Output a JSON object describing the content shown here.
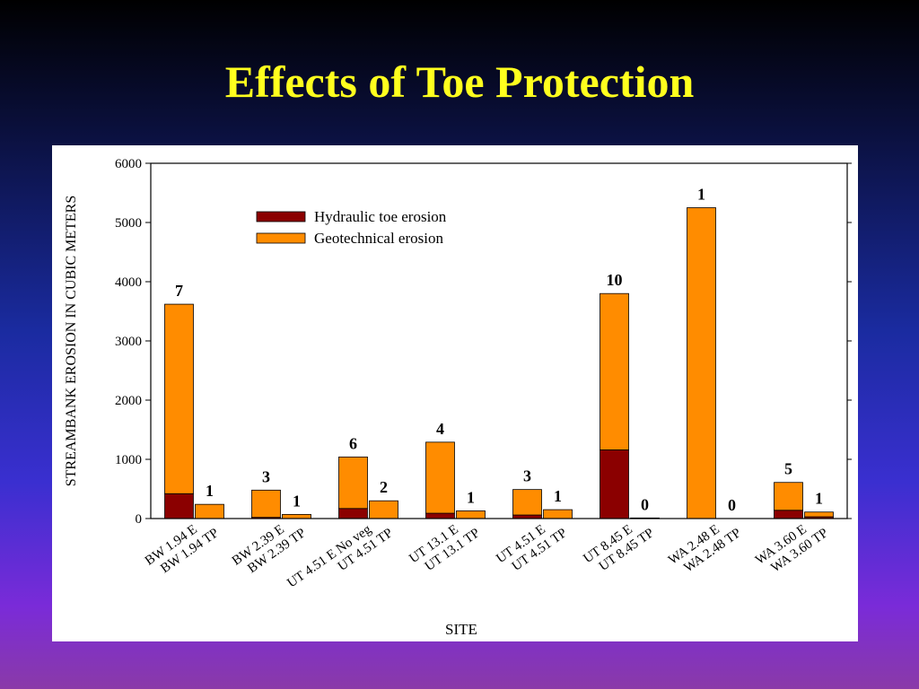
{
  "slide": {
    "title": "Effects of Toe Protection"
  },
  "colors": {
    "hydraulic": "#8b0000",
    "geotechnical": "#ff8c00",
    "title": "#ffff1e"
  },
  "chart_data": {
    "type": "bar",
    "stacked": true,
    "xlabel": "SITE",
    "ylabel": "STREAMBANK EROSION IN CUBIC METERS",
    "ylim": [
      0,
      6000
    ],
    "yticks": [
      0,
      1000,
      2000,
      3000,
      4000,
      5000,
      6000
    ],
    "grid": false,
    "legend_position": "upper-left",
    "categories": [
      "BW 1.94 E",
      "BW 1.94 TP",
      "BW 2.39 E",
      "BW 2.39 TP",
      "UT 4.51 E No veg",
      "UT 4.51 TP",
      "UT 13.1 E",
      "UT 13.1 TP",
      "UT 4.51 E",
      "UT 4.51 TP",
      "UT 8.45 E",
      "UT 8.45 TP",
      "WA 2.48 E",
      "WA 2.48 TP",
      "WA 3.60 E",
      "WA 3.60 TP"
    ],
    "series": [
      {
        "name": "Hydraulic toe erosion",
        "color": "#8b0000",
        "values": [
          420,
          0,
          20,
          0,
          170,
          0,
          90,
          0,
          60,
          0,
          1160,
          0,
          0,
          0,
          140,
          30
        ]
      },
      {
        "name": "Geotechnical erosion",
        "color": "#ff8c00",
        "values": [
          3200,
          240,
          460,
          70,
          870,
          300,
          1200,
          130,
          430,
          150,
          2640,
          10,
          5250,
          0,
          470,
          80
        ]
      }
    ],
    "bar_labels": [
      "7",
      "1",
      "3",
      "1",
      "6",
      "2",
      "4",
      "1",
      "3",
      "1",
      "10",
      "0",
      "1",
      "0",
      "5",
      "1"
    ]
  }
}
